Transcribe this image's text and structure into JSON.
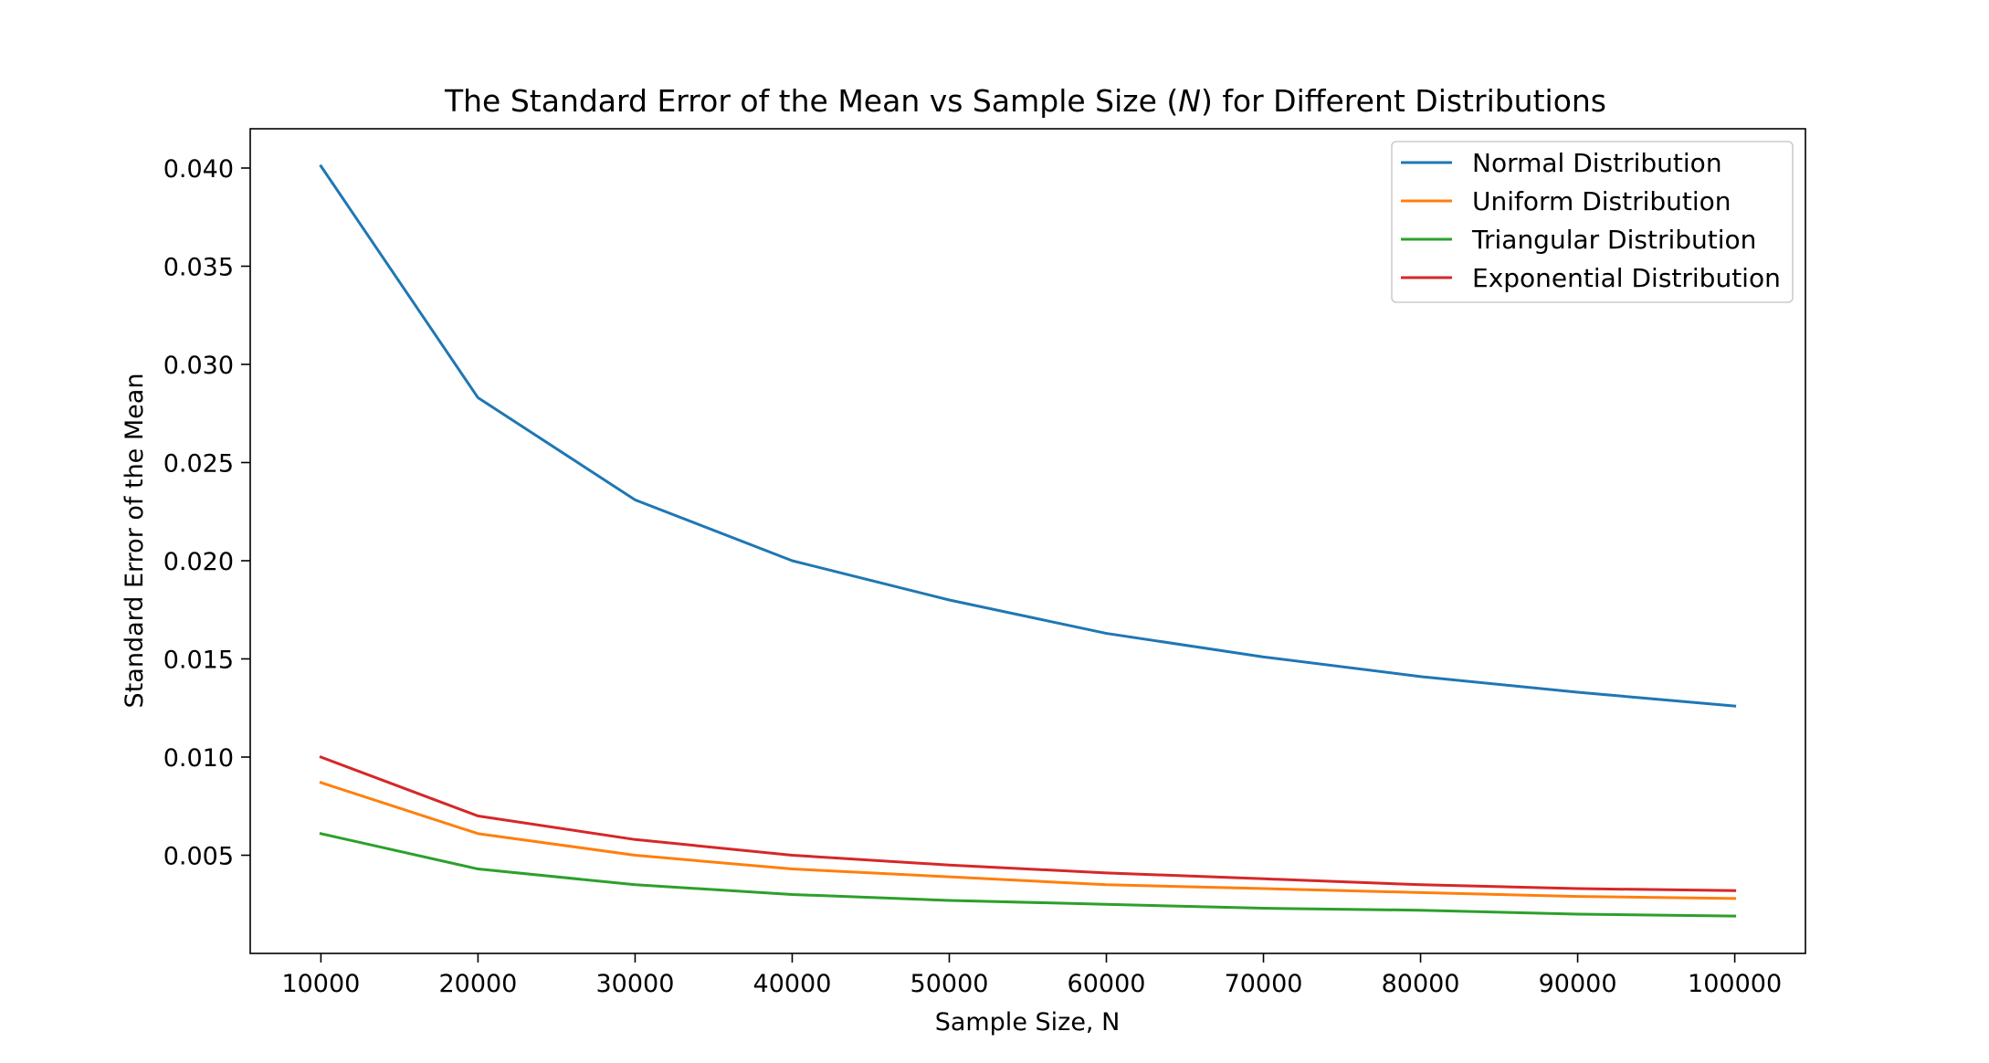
{
  "chart_data": {
    "type": "line",
    "title": "The Standard Error of the Mean vs Sample Size (N) for Different Distributions",
    "title_parts": {
      "before": "The Standard Error of the Mean vs Sample Size (",
      "italic": "N",
      "after": ") for Different Distributions"
    },
    "xlabel": "Sample Size, N",
    "ylabel": "Standard Error of the Mean",
    "x": [
      10000,
      20000,
      30000,
      40000,
      50000,
      60000,
      70000,
      80000,
      90000,
      100000
    ],
    "xlim": [
      5500,
      104500
    ],
    "ylim": [
      0.0,
      0.042
    ],
    "xticks": [
      10000,
      20000,
      30000,
      40000,
      50000,
      60000,
      70000,
      80000,
      90000,
      100000
    ],
    "xtick_labels": [
      "10000",
      "20000",
      "30000",
      "40000",
      "50000",
      "60000",
      "70000",
      "80000",
      "90000",
      "100000"
    ],
    "yticks": [
      0.005,
      0.01,
      0.015,
      0.02,
      0.025,
      0.03,
      0.035,
      0.04
    ],
    "ytick_labels": [
      "0.005",
      "0.010",
      "0.015",
      "0.020",
      "0.025",
      "0.030",
      "0.035",
      "0.040"
    ],
    "grid": false,
    "legend_position": "top-right",
    "series": [
      {
        "name": "Normal Distribution",
        "color": "#1f77b4",
        "values": [
          0.0401,
          0.0283,
          0.0231,
          0.02,
          0.018,
          0.0163,
          0.0151,
          0.0141,
          0.0133,
          0.0126
        ]
      },
      {
        "name": "Uniform Distribution",
        "color": "#ff7f0e",
        "values": [
          0.0087,
          0.0061,
          0.005,
          0.0043,
          0.0039,
          0.0035,
          0.0033,
          0.0031,
          0.0029,
          0.0028
        ]
      },
      {
        "name": "Triangular Distribution",
        "color": "#2ca02c",
        "values": [
          0.0061,
          0.0043,
          0.0035,
          0.003,
          0.0027,
          0.0025,
          0.0023,
          0.0022,
          0.002,
          0.0019
        ]
      },
      {
        "name": "Exponential Distribution",
        "color": "#d62728",
        "values": [
          0.01,
          0.007,
          0.0058,
          0.005,
          0.0045,
          0.0041,
          0.0038,
          0.0035,
          0.0033,
          0.0032
        ]
      }
    ]
  }
}
